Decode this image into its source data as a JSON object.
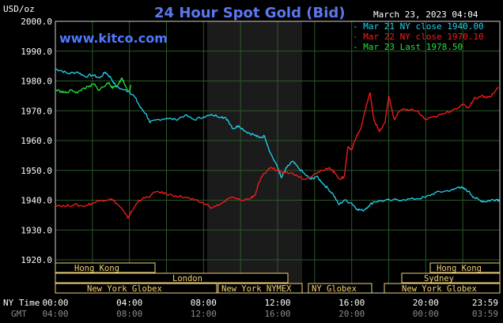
{
  "header": {
    "title": "24 Hour Spot Gold (Bid)",
    "units": "USD/oz",
    "site": "www.kitco.com",
    "timestamp": "March 23, 2023 04:04"
  },
  "axis_labels": {
    "ny_time": "NY Time",
    "gmt": "GMT"
  },
  "colors": {
    "mar21": "#22d3ee",
    "mar22": "#ff1a1a",
    "mar23": "#22e33a",
    "grid": "#2a5a2a",
    "frame": "#cfcfcf",
    "session_bg": "#000000",
    "session_border": "#f0d27a",
    "nymex_shade": "#1b1b1b"
  },
  "sessions": {
    "hong_kong_1": "Hong Kong",
    "london": "London",
    "new_york_globex_1": "New York Globex",
    "new_york_nymex": "New York NYMEX",
    "ny_globex": "NY Globex",
    "hong_kong_2": "Hong Kong",
    "sydney": "Sydney",
    "new_york_globex_2": "New York Globex"
  },
  "chart_data": {
    "type": "line",
    "title": "24 Hour Spot Gold (Bid)",
    "ylabel": "USD/oz",
    "ylim": [
      1920,
      2000
    ],
    "xlim": [
      0,
      24
    ],
    "yticks": [
      "1920.0",
      "1930.0",
      "1940.0",
      "1950.0",
      "1960.0",
      "1970.0",
      "1980.0",
      "1990.0",
      "2000.0"
    ],
    "xticks_ny": [
      "00:00",
      "04:00",
      "08:00",
      "12:00",
      "16:00",
      "20:00",
      "23:59"
    ],
    "xticks_gmt": [
      "04:00",
      "08:00",
      "12:00",
      "16:00",
      "20:00",
      "00:00",
      "03:59"
    ],
    "grid": true,
    "legend_position": "top-right",
    "series": [
      {
        "name": "Mar 21 NY close 1940.00",
        "key": "mar21",
        "points": [
          [
            0,
            1984
          ],
          [
            0.3,
            1983.5
          ],
          [
            0.7,
            1982.5
          ],
          [
            1.2,
            1983
          ],
          [
            1.6,
            1981.5
          ],
          [
            2.0,
            1982
          ],
          [
            2.4,
            1981
          ],
          [
            2.7,
            1983
          ],
          [
            3.0,
            1981
          ],
          [
            3.3,
            1978
          ],
          [
            3.7,
            1977
          ],
          [
            4.0,
            1976.5
          ],
          [
            4.3,
            1974.5
          ],
          [
            4.6,
            1971
          ],
          [
            4.9,
            1969
          ],
          [
            5.1,
            1966
          ],
          [
            5.5,
            1967
          ],
          [
            6.0,
            1967.5
          ],
          [
            6.5,
            1967
          ],
          [
            7.0,
            1968.5
          ],
          [
            7.5,
            1967
          ],
          [
            8.0,
            1968
          ],
          [
            8.5,
            1968.5
          ],
          [
            9.0,
            1968
          ],
          [
            9.3,
            1967
          ],
          [
            9.6,
            1964
          ],
          [
            9.9,
            1965
          ],
          [
            10.3,
            1963
          ],
          [
            10.7,
            1962
          ],
          [
            11.0,
            1961
          ],
          [
            11.3,
            1961.5
          ],
          [
            11.6,
            1956
          ],
          [
            12.0,
            1951
          ],
          [
            12.2,
            1947.5
          ],
          [
            12.5,
            1951
          ],
          [
            12.8,
            1953
          ],
          [
            13.1,
            1951
          ],
          [
            13.5,
            1948.5
          ],
          [
            13.8,
            1947
          ],
          [
            14.1,
            1948
          ],
          [
            14.4,
            1946
          ],
          [
            14.7,
            1944
          ],
          [
            15.0,
            1942
          ],
          [
            15.3,
            1938.5
          ],
          [
            15.6,
            1940
          ],
          [
            16.0,
            1939
          ],
          [
            16.3,
            1937
          ],
          [
            16.6,
            1936.5
          ],
          [
            16.9,
            1938
          ],
          [
            17.2,
            1939.5
          ],
          [
            17.6,
            1939.8
          ],
          [
            18.2,
            1940
          ],
          [
            18.8,
            1940.2
          ],
          [
            19.5,
            1940.5
          ],
          [
            20.0,
            1941
          ],
          [
            20.5,
            1942.5
          ],
          [
            21.0,
            1943
          ],
          [
            21.5,
            1943.5
          ],
          [
            21.8,
            1944.5
          ],
          [
            22.0,
            1944
          ],
          [
            22.3,
            1943
          ],
          [
            22.6,
            1941
          ],
          [
            22.9,
            1940
          ],
          [
            23.2,
            1939.5
          ],
          [
            23.5,
            1940
          ],
          [
            23.8,
            1940.3
          ],
          [
            24.0,
            1940
          ]
        ]
      },
      {
        "name": "Mar 22 NY close 1970.10",
        "key": "mar22",
        "points": [
          [
            0,
            1938.5
          ],
          [
            0.5,
            1938
          ],
          [
            1.0,
            1938.5
          ],
          [
            1.5,
            1938
          ],
          [
            2.0,
            1939
          ],
          [
            2.5,
            1940
          ],
          [
            3.0,
            1940.5
          ],
          [
            3.3,
            1939
          ],
          [
            3.6,
            1937
          ],
          [
            3.9,
            1934
          ],
          [
            4.1,
            1936
          ],
          [
            4.5,
            1940
          ],
          [
            5.0,
            1941
          ],
          [
            5.5,
            1943
          ],
          [
            6.0,
            1942
          ],
          [
            6.5,
            1941.5
          ],
          [
            7.0,
            1941
          ],
          [
            7.5,
            1940
          ],
          [
            8.0,
            1939
          ],
          [
            8.5,
            1937.5
          ],
          [
            9.0,
            1939
          ],
          [
            9.5,
            1941
          ],
          [
            10.0,
            1940
          ],
          [
            10.5,
            1940.5
          ],
          [
            10.8,
            1942
          ],
          [
            11.0,
            1946
          ],
          [
            11.3,
            1949
          ],
          [
            11.6,
            1951
          ],
          [
            12.0,
            1950
          ],
          [
            12.5,
            1949.5
          ],
          [
            13.0,
            1948.5
          ],
          [
            13.5,
            1947
          ],
          [
            14.0,
            1949
          ],
          [
            14.5,
            1950
          ],
          [
            14.8,
            1951
          ],
          [
            15.1,
            1949
          ],
          [
            15.4,
            1947
          ],
          [
            15.6,
            1948
          ],
          [
            15.8,
            1958
          ],
          [
            16.0,
            1957
          ],
          [
            16.3,
            1962
          ],
          [
            16.5,
            1964
          ],
          [
            16.8,
            1972
          ],
          [
            17.0,
            1976
          ],
          [
            17.2,
            1967
          ],
          [
            17.5,
            1963
          ],
          [
            17.8,
            1966
          ],
          [
            18.0,
            1975
          ],
          [
            18.3,
            1967
          ],
          [
            18.6,
            1970
          ],
          [
            19.0,
            1970.5
          ],
          [
            19.5,
            1970
          ],
          [
            20.0,
            1967
          ],
          [
            20.5,
            1968
          ],
          [
            21.0,
            1969
          ],
          [
            21.5,
            1970.5
          ],
          [
            22.0,
            1972
          ],
          [
            22.3,
            1971
          ],
          [
            22.6,
            1974
          ],
          [
            23.0,
            1975
          ],
          [
            23.4,
            1974.5
          ],
          [
            23.7,
            1976
          ],
          [
            23.9,
            1978
          ]
        ]
      },
      {
        "name": "Mar 23 Last 1978.50",
        "key": "mar23",
        "points": [
          [
            0,
            1977
          ],
          [
            0.3,
            1976.5
          ],
          [
            0.6,
            1976
          ],
          [
            0.9,
            1977
          ],
          [
            1.2,
            1976
          ],
          [
            1.5,
            1977.5
          ],
          [
            1.8,
            1978
          ],
          [
            2.1,
            1979
          ],
          [
            2.3,
            1977
          ],
          [
            2.6,
            1978
          ],
          [
            2.9,
            1979.5
          ],
          [
            3.1,
            1977.5
          ],
          [
            3.4,
            1979
          ],
          [
            3.6,
            1981
          ],
          [
            3.8,
            1978
          ],
          [
            4.0,
            1976.5
          ],
          [
            4.1,
            1978.5
          ]
        ]
      }
    ]
  }
}
